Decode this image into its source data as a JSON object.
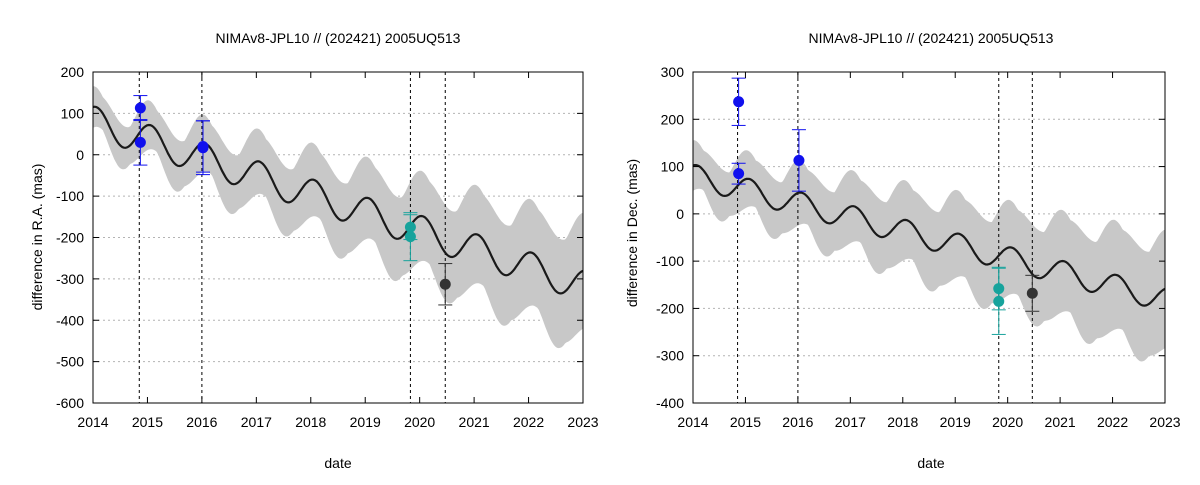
{
  "chart_data": [
    {
      "type": "line",
      "title": "NIMAv8-JPL10 // (202421) 2005UQ513",
      "xlabel": "date",
      "ylabel": "difference in R.A. (mas)",
      "xlim": [
        2014,
        2023
      ],
      "ylim": [
        -600,
        200
      ],
      "xticks": [
        "2014",
        "2015",
        "2016",
        "2017",
        "2018",
        "2019",
        "2020",
        "2021",
        "2022",
        "2023"
      ],
      "yticks": [
        "200",
        "100",
        "0",
        "-100",
        "-200",
        "-300",
        "-400",
        "-500",
        "-600"
      ],
      "xtick_values": [
        2014,
        2015,
        2016,
        2017,
        2018,
        2019,
        2020,
        2021,
        2022,
        2023
      ],
      "ytick_values": [
        200,
        100,
        0,
        -100,
        -200,
        -300,
        -400,
        -500,
        -600
      ],
      "vlines": [
        2014.85,
        2016.0,
        2019.83,
        2020.47
      ],
      "curve": {
        "x0": 2014.0,
        "x1": 2023.0,
        "offset": 80,
        "slope": -44,
        "amp": 38,
        "phase": 1.2
      },
      "band": {
        "base": 38,
        "growth": 10
      },
      "series": [
        {
          "name": "blue",
          "color": "#1010ee",
          "points": [
            {
              "x": 2014.87,
              "y": 113,
              "err": 30
            },
            {
              "x": 2014.87,
              "y": 30,
              "err": 55
            },
            {
              "x": 2016.02,
              "y": 20,
              "err": 62
            },
            {
              "x": 2016.02,
              "y": 17,
              "err": 65
            }
          ]
        },
        {
          "name": "teal",
          "color": "#17a39c",
          "points": [
            {
              "x": 2019.83,
              "y": -175,
              "err": 30
            },
            {
              "x": 2019.83,
              "y": -198,
              "err": 58
            }
          ]
        },
        {
          "name": "dark",
          "color": "#333333",
          "points": [
            {
              "x": 2020.47,
              "y": -313,
              "err": 50
            }
          ]
        }
      ]
    },
    {
      "type": "line",
      "title": "NIMAv8-JPL10 // (202421) 2005UQ513",
      "xlabel": "date",
      "ylabel": "difference in Dec. (mas)",
      "xlim": [
        2014,
        2023
      ],
      "ylim": [
        -400,
        300
      ],
      "xticks": [
        "2014",
        "2015",
        "2016",
        "2017",
        "2018",
        "2019",
        "2020",
        "2021",
        "2022",
        "2023"
      ],
      "yticks": [
        "300",
        "200",
        "100",
        "0",
        "-100",
        "-200",
        "-300",
        "-400"
      ],
      "xtick_values": [
        2014,
        2015,
        2016,
        2017,
        2018,
        2019,
        2020,
        2021,
        2022,
        2023
      ],
      "ytick_values": [
        300,
        200,
        100,
        0,
        -100,
        -200,
        -300,
        -400
      ],
      "vlines": [
        2014.85,
        2016.0,
        2019.83,
        2020.47
      ],
      "curve": {
        "x0": 2014.0,
        "x1": 2023.0,
        "offset": 80,
        "slope": -29,
        "amp": 25,
        "phase": 1.1
      },
      "band": {
        "base": 40,
        "growth": 8
      },
      "series": [
        {
          "name": "blue",
          "color": "#1010ee",
          "points": [
            {
              "x": 2014.87,
              "y": 237,
              "err": 50
            },
            {
              "x": 2014.87,
              "y": 85,
              "err": 22
            },
            {
              "x": 2016.02,
              "y": 113,
              "err": 65
            }
          ]
        },
        {
          "name": "teal",
          "color": "#17a39c",
          "points": [
            {
              "x": 2019.83,
              "y": -158,
              "err": 45
            },
            {
              "x": 2019.83,
              "y": -185,
              "err": 70
            }
          ]
        },
        {
          "name": "dark",
          "color": "#333333",
          "points": [
            {
              "x": 2020.47,
              "y": -168,
              "err": 38
            }
          ]
        }
      ]
    }
  ]
}
